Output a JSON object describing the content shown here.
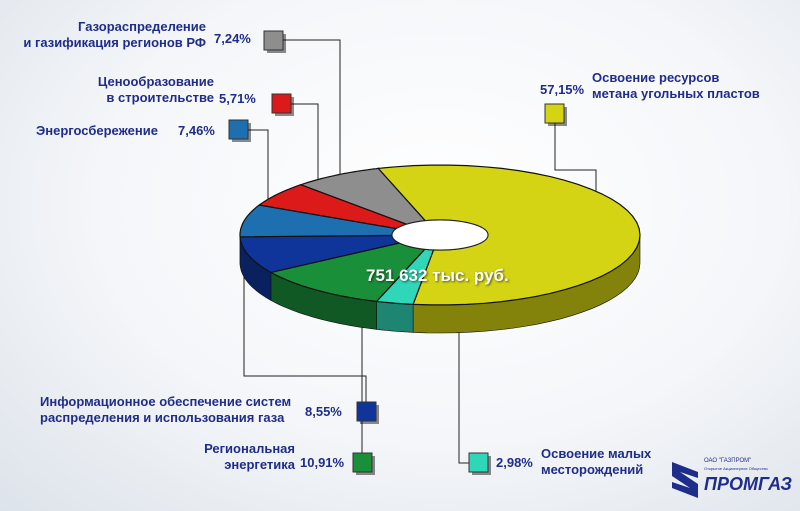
{
  "chart_data": {
    "type": "pie",
    "total_label": "751 632 тыс. руб.",
    "slices": [
      {
        "label": "Освоение ресурсов метана угольных пластов",
        "label_lines": [
          "Освоение ресурсов",
          "метана угольных пластов"
        ],
        "value": 57.15,
        "value_label": "57,15%",
        "color": "#d4d414"
      },
      {
        "label": "Освоение малых месторождений",
        "label_lines": [
          "Освоение малых",
          "месторождений"
        ],
        "value": 2.98,
        "value_label": "2,98%",
        "color": "#2fd6b8"
      },
      {
        "label": "Региональная энергетика",
        "label_lines": [
          "Региональная",
          "энергетика"
        ],
        "value": 10.91,
        "value_label": "10,91%",
        "color": "#1a8f3a"
      },
      {
        "label": "Информационное обеспечение систем распределения и использования газа",
        "label_lines": [
          "Информационное обеспечение систем",
          "распределения и использования газа"
        ],
        "value": 8.55,
        "value_label": "8,55%",
        "color": "#10359a"
      },
      {
        "label": "Энергосбережение",
        "label_lines": [
          "Энергосбережение"
        ],
        "value": 7.46,
        "value_label": "7,46%",
        "color": "#1e6fb0"
      },
      {
        "label": "Ценообразование в строительстве",
        "label_lines": [
          "Ценообразование",
          "в строительстве"
        ],
        "value": 5.71,
        "value_label": "5,71%",
        "color": "#dd1a1a"
      },
      {
        "label": "Газораспределение и газификация регионов РФ",
        "label_lines": [
          "Газораспределение",
          "и газификация регионов РФ"
        ],
        "value": 7.24,
        "value_label": "7,24%",
        "color": "#8e8e8e"
      }
    ]
  },
  "logo": {
    "sub1": "ОАО \"ГАЗПРОМ\"",
    "sub2": "Открытое Акционерное Общество",
    "name": "ПРОМГАЗ"
  }
}
